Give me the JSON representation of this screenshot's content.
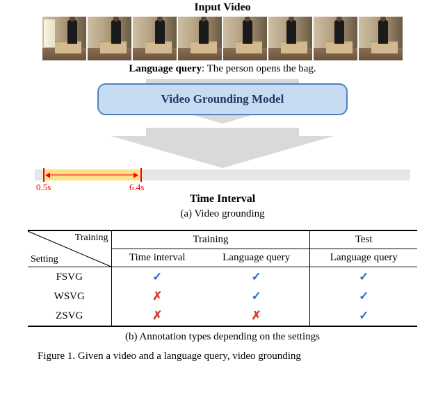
{
  "titles": {
    "input_video": "Input Video",
    "language_query_label": "Language query",
    "language_query_text": ": The person opens the bag.",
    "model_box": "Video Grounding Model",
    "time_interval": "Time Interval",
    "subcap_a": "(a) Video grounding",
    "subcap_b": "(b) Annotation types depending on the settings",
    "figcap": "Figure 1. Given a video and a language query, video grounding"
  },
  "timeline": {
    "start_label": "0.5s",
    "end_label": "6.4s",
    "bar_bg": "#e6e6e6",
    "highlight_bg": "#ffe08a",
    "marker_color": "#ff0000"
  },
  "frames": {
    "count": 8,
    "person_x_offsets": [
      36,
      34,
      32,
      30,
      28,
      26,
      30,
      28
    ],
    "head_x_offsets": [
      39,
      37,
      35,
      33,
      31,
      29,
      33,
      31
    ]
  },
  "model_box_style": {
    "bg": "#c7dbf3",
    "border": "#4f81bf",
    "arrow": "#d9d9d9"
  },
  "table": {
    "diag_top": "Training",
    "diag_bot": "Setting",
    "group_training": "Training",
    "group_test": "Test",
    "col_time": "Time interval",
    "col_lang_train": "Language query",
    "col_lang_test": "Language query",
    "rows": [
      {
        "name": "FSVG",
        "time": true,
        "lang_train": true,
        "lang_test": true
      },
      {
        "name": "WSVG",
        "time": false,
        "lang_train": true,
        "lang_test": true
      },
      {
        "name": "ZSVG",
        "time": false,
        "lang_train": false,
        "lang_test": true
      }
    ],
    "check_glyph": "✓",
    "cross_glyph": "✗",
    "check_color": "#1f6fd8",
    "cross_color": "#d83a2b"
  }
}
